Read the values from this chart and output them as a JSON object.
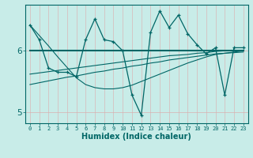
{
  "xlabel": "Humidex (Indice chaleur)",
  "background_color": "#c8ece8",
  "line_color": "#006666",
  "xlim": [
    -0.5,
    23.5
  ],
  "ylim": [
    4.82,
    6.75
  ],
  "yticks": [
    5,
    6
  ],
  "xticks": [
    0,
    1,
    2,
    3,
    4,
    5,
    6,
    7,
    8,
    9,
    10,
    11,
    12,
    13,
    14,
    15,
    16,
    17,
    18,
    19,
    20,
    21,
    22,
    23
  ],
  "x": [
    0,
    1,
    2,
    3,
    4,
    5,
    6,
    7,
    8,
    9,
    10,
    11,
    12,
    13,
    14,
    15,
    16,
    17,
    18,
    19,
    20,
    21,
    22,
    23
  ],
  "y_main": [
    6.42,
    6.18,
    5.72,
    5.65,
    5.65,
    5.58,
    6.18,
    6.52,
    6.18,
    6.15,
    6.0,
    5.28,
    4.95,
    6.3,
    6.65,
    6.38,
    6.58,
    6.28,
    6.1,
    5.95,
    6.05,
    5.28,
    6.05,
    6.05
  ],
  "y_trend_flat": [
    6.0,
    6.0,
    6.0,
    6.0,
    6.0,
    6.0,
    6.0,
    6.0,
    6.0,
    6.0,
    6.0,
    6.0,
    6.0,
    6.0,
    6.0,
    6.0,
    6.0,
    6.0,
    6.0,
    6.0,
    6.0,
    6.0,
    6.0,
    6.0
  ],
  "y_trend_rise1": [
    5.62,
    5.64,
    5.66,
    5.68,
    5.7,
    5.72,
    5.74,
    5.76,
    5.78,
    5.8,
    5.82,
    5.84,
    5.86,
    5.88,
    5.9,
    5.92,
    5.93,
    5.94,
    5.96,
    5.97,
    5.99,
    6.0,
    6.0,
    6.0
  ],
  "y_trend_rise2": [
    5.45,
    5.48,
    5.51,
    5.54,
    5.57,
    5.59,
    5.62,
    5.65,
    5.67,
    5.7,
    5.72,
    5.75,
    5.77,
    5.8,
    5.82,
    5.85,
    5.87,
    5.89,
    5.91,
    5.93,
    5.95,
    5.96,
    5.97,
    5.98
  ],
  "y_trend_diag": [
    6.42,
    6.25,
    6.08,
    5.9,
    5.73,
    5.56,
    5.45,
    5.4,
    5.38,
    5.38,
    5.4,
    5.44,
    5.5,
    5.56,
    5.62,
    5.68,
    5.74,
    5.8,
    5.85,
    5.9,
    5.94,
    5.96,
    5.98,
    6.0
  ]
}
